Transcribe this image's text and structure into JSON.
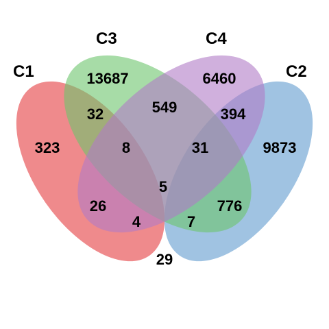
{
  "sets": [
    {
      "id": "C1",
      "label": "C1",
      "color": "#E8595B"
    },
    {
      "id": "C2",
      "label": "C2",
      "color": "#78A9D6"
    },
    {
      "id": "C3",
      "label": "C3",
      "color": "#6DC46D"
    },
    {
      "id": "C4",
      "label": "C4",
      "color": "#B07CC6"
    }
  ],
  "regions": {
    "c1_only": "323",
    "c2_only": "9873",
    "c3_only": "13687",
    "c4_only": "6460",
    "c1_c3": "32",
    "c3_c4": "549",
    "c2_c4": "394",
    "c1_c3_c4": "8",
    "c2_c3_c4": "31",
    "all_four": "5",
    "c1_c4": "26",
    "c2_c3": "776",
    "c1_c2_c4": "4",
    "c1_c2_c3": "7",
    "c1_c2": "29"
  }
}
